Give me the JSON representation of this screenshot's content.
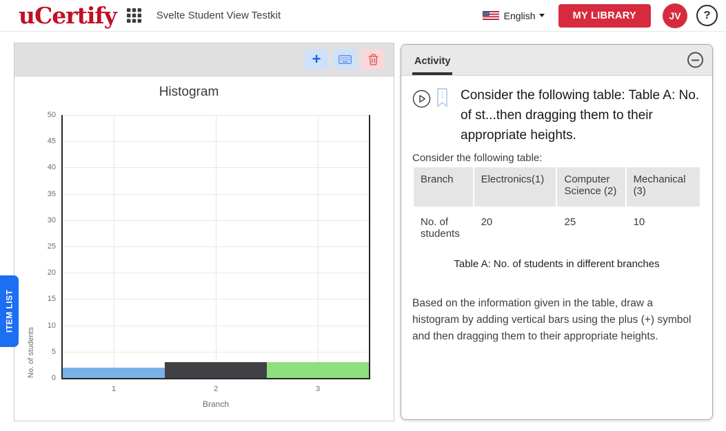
{
  "header": {
    "logo_text": "uCertify",
    "app_title": "Svelte Student View Testkit",
    "language_label": "English",
    "my_library_label": "MY LIBRARY",
    "avatar_initials": "JV",
    "help_label": "?"
  },
  "colors": {
    "brand_red": "#c11025",
    "button_red": "#d62b3e",
    "accent_blue": "#1c6ef2",
    "toolbar_button_blue_bg": "#cfe0fb",
    "toolbar_button_red_bg": "#f8d8da"
  },
  "toolbar": {
    "add_label": "+",
    "keyboard_icon": "keyboard-icon",
    "delete_icon": "trash-icon"
  },
  "item_list": {
    "label": "ITEM LIST"
  },
  "chart_data": {
    "type": "bar",
    "title": "Histogram",
    "xlabel": "Branch",
    "ylabel": "No. of students",
    "categories": [
      "1",
      "2",
      "3"
    ],
    "values": [
      2,
      3,
      3
    ],
    "bar_colors": [
      "#7ab1e8",
      "#404145",
      "#8ee07e"
    ],
    "ylim": [
      0,
      50
    ],
    "ytick_step": 5,
    "grid": true,
    "legend": false
  },
  "activity": {
    "tab_label": "Activity",
    "question_text": "Consider the following table: Table A: No. of st...then dragging them to their appropriate heights.",
    "table_intro": "Consider the following table:",
    "table": {
      "headers": [
        "Branch",
        "Electronics(1)",
        "Computer Science (2)",
        "Mechanical (3)"
      ],
      "row": [
        "No. of students",
        "20",
        "25",
        "10"
      ],
      "caption": "Table A: No. of students in different branches"
    },
    "instructions": "Based on the information given in the table, draw a histogram by adding vertical bars using the plus (+) symbol and then dragging them to their appropriate heights."
  }
}
